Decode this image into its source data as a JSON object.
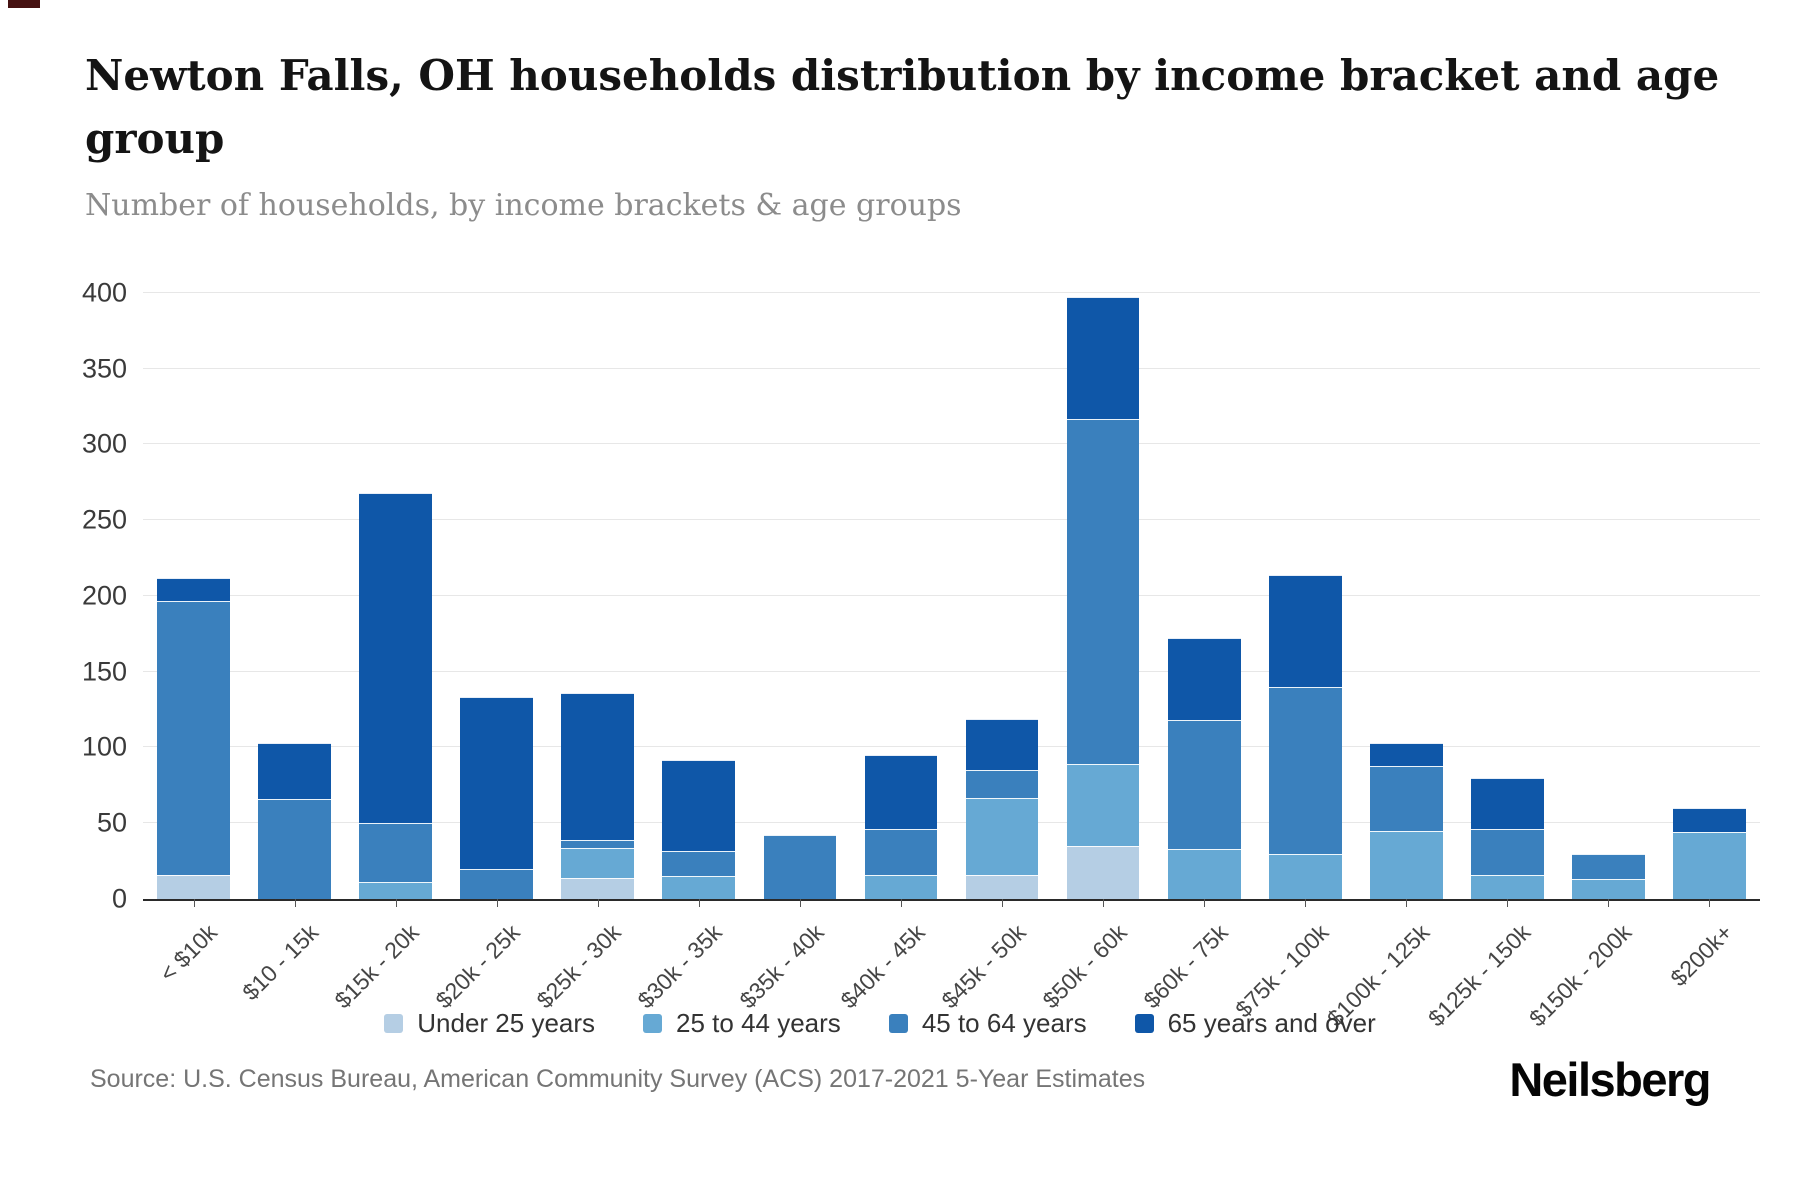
{
  "chart_data": {
    "type": "bar",
    "stacked": true,
    "title": "Newton Falls, OH households distribution by income bracket and age group",
    "subtitle": "Number of households, by income brackets & age groups",
    "categories": [
      "< $10k",
      "$10 - 15k",
      "$15k - 20k",
      "$20k - 25k",
      "$25k - 30k",
      "$30k - 35k",
      "$35k - 40k",
      "$40k - 45k",
      "$45k - 50k",
      "$50k - 60k",
      "$60k - 75k",
      "$75k - 100k",
      "$100k - 125k",
      "$125k - 150k",
      "$150k - 200k",
      "$200k+"
    ],
    "series": [
      {
        "name": "Under 25 years",
        "color": "#b5cee4",
        "values": [
          16,
          0,
          0,
          0,
          14,
          0,
          0,
          0,
          16,
          35,
          0,
          0,
          0,
          0,
          0,
          0
        ]
      },
      {
        "name": "25 to 44 years",
        "color": "#66a9d4",
        "values": [
          0,
          0,
          11,
          0,
          20,
          15,
          0,
          16,
          51,
          54,
          33,
          30,
          45,
          16,
          13,
          44
        ]
      },
      {
        "name": "45 to 64 years",
        "color": "#3a80bd",
        "values": [
          181,
          66,
          39,
          20,
          5,
          17,
          42,
          30,
          18,
          228,
          85,
          110,
          43,
          30,
          17,
          0
        ]
      },
      {
        "name": "65 years and over",
        "color": "#0f57a8",
        "values": [
          15,
          37,
          218,
          113,
          97,
          60,
          0,
          49,
          34,
          80,
          54,
          74,
          15,
          34,
          0,
          16
        ]
      }
    ],
    "totals": [
      212,
      103,
      268,
      133,
      136,
      92,
      42,
      95,
      119,
      397,
      172,
      214,
      103,
      80,
      30,
      60
    ],
    "xlabel": "",
    "ylabel": "",
    "ylim": [
      0,
      400
    ],
    "yticks": [
      0,
      50,
      100,
      150,
      200,
      250,
      300,
      350,
      400
    ],
    "grid": true,
    "legend_position": "bottom"
  },
  "footer": {
    "source": "Source: U.S. Census Bureau, American Community Survey (ACS) 2017-2021 5-Year Estimates",
    "logo": "Neilsberg"
  }
}
